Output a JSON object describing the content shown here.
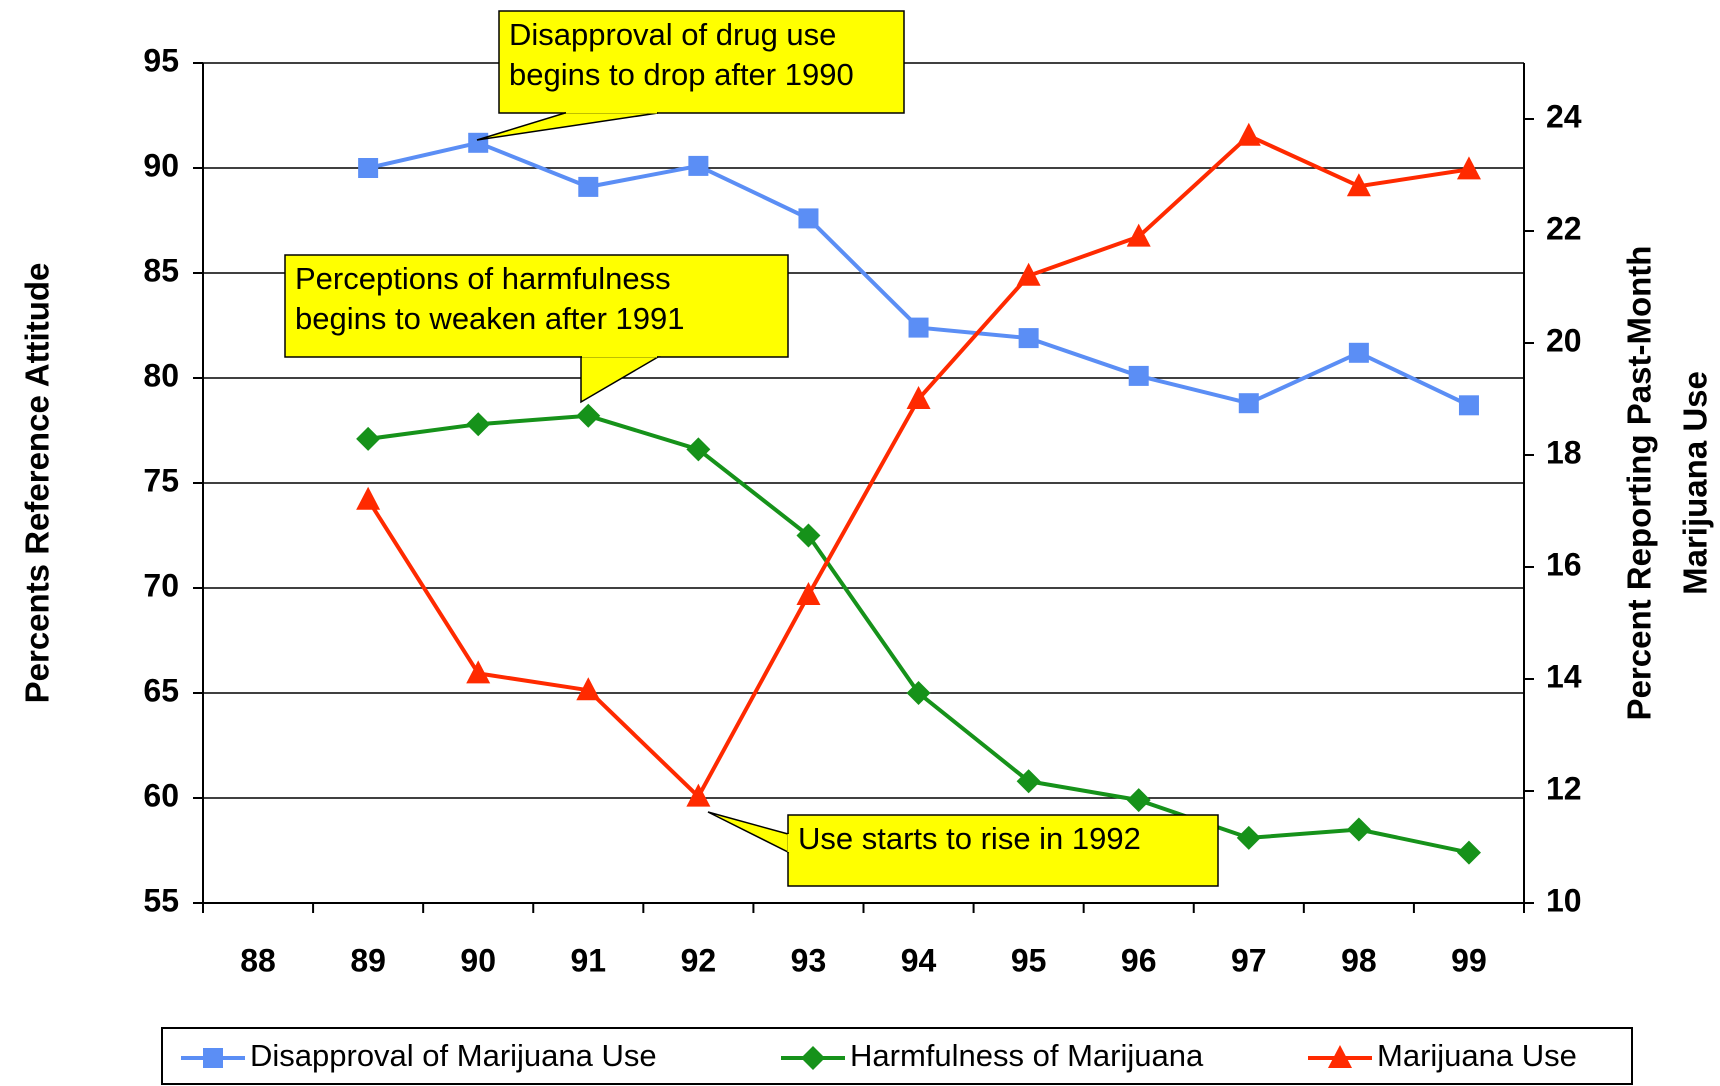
{
  "chart_data": {
    "type": "line",
    "y_label": "Percents Reference Attitude",
    "y2_label": [
      "Percent Reporting Past-Month",
      "Marijuana Use"
    ],
    "categories": [
      "88",
      "89",
      "90",
      "91",
      "92",
      "93",
      "94",
      "95",
      "96",
      "97",
      "98",
      "99"
    ],
    "series": [
      {
        "name": "Disapproval of Marijuana Use",
        "color": "#5b8ef5",
        "marker": "square",
        "values": [
          null,
          90.0,
          91.2,
          89.1,
          90.1,
          87.6,
          82.4,
          81.9,
          80.1,
          78.8,
          81.2,
          78.7
        ]
      },
      {
        "name": "Harmfulness of Marijuana",
        "color": "#16921a",
        "marker": "diamond",
        "values": [
          null,
          77.1,
          77.8,
          78.2,
          76.6,
          72.5,
          65.0,
          60.8,
          59.9,
          58.1,
          58.5,
          57.4
        ]
      },
      {
        "name": "Marijuana Use",
        "color": "#ff2a00",
        "marker": "triangle",
        "axis": "y2",
        "values": [
          null,
          17.2,
          14.1,
          13.8,
          11.9,
          15.5,
          19.0,
          21.2,
          21.9,
          23.7,
          22.8,
          23.1
        ]
      }
    ],
    "ylim": [
      55,
      95
    ],
    "yticks": [
      55,
      60,
      65,
      70,
      75,
      80,
      85,
      90,
      95
    ],
    "y2lim": [
      10,
      25
    ],
    "y2ticks": [
      10,
      12,
      14,
      16,
      18,
      20,
      22,
      24
    ],
    "grid": true,
    "legend": "bottom",
    "annotations": [
      {
        "text": [
          "Disapproval of drug use",
          "begins to drop after 1990"
        ]
      },
      {
        "text": [
          "Perceptions of harmfulness",
          "begins to weaken after 1991"
        ]
      },
      {
        "text": [
          "Use starts to rise in 1992"
        ]
      }
    ]
  }
}
